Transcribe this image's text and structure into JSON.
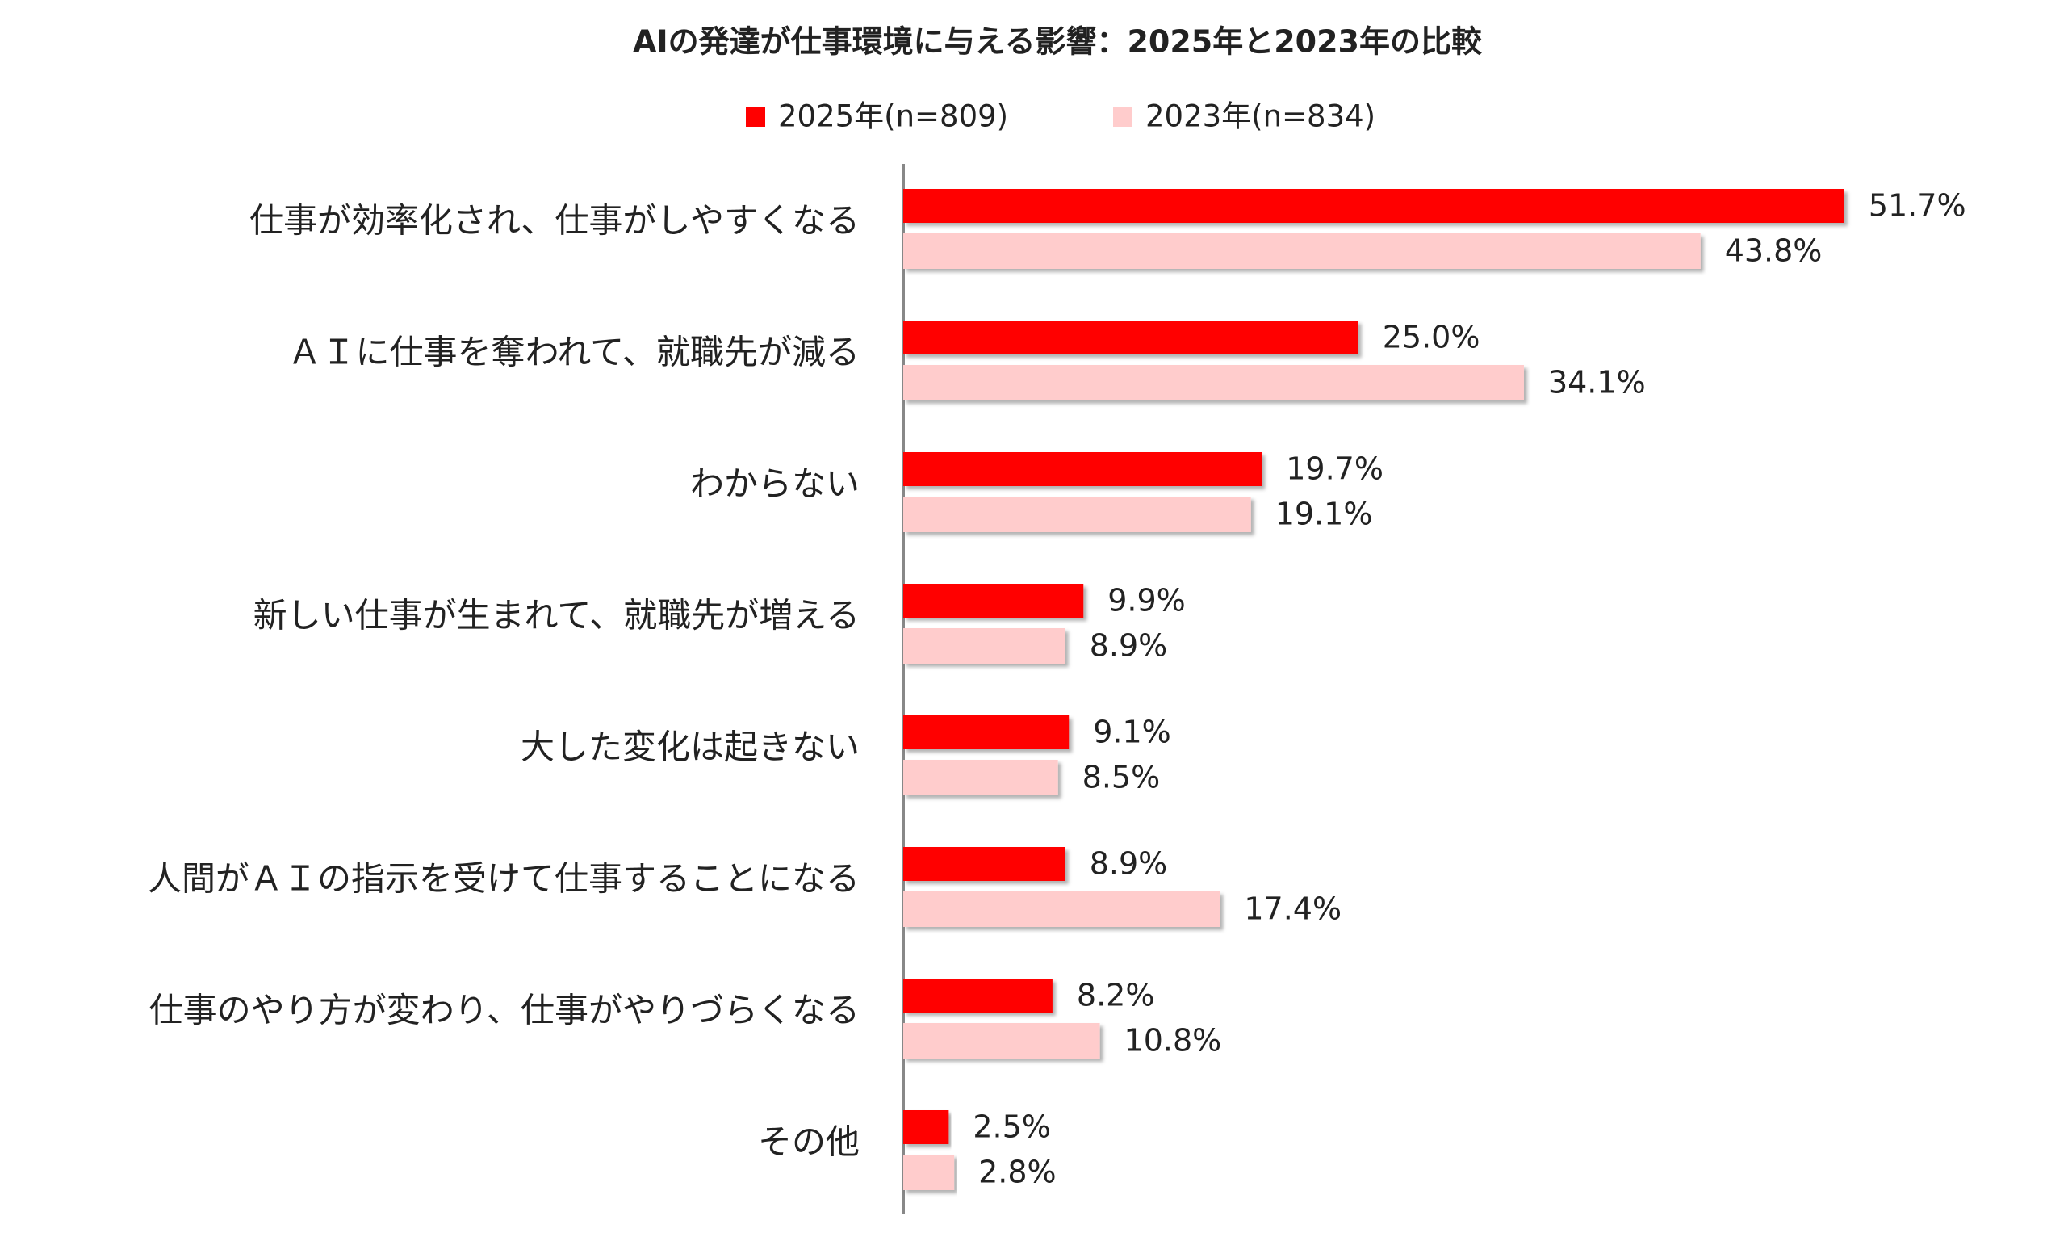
{
  "chart_data": {
    "type": "bar",
    "orientation": "horizontal",
    "title": "AIの発達が仕事環境に与える影響：2025年と2023年の比較",
    "categories": [
      "仕事が効率化され、仕事がしやすくなる",
      "ＡＩに仕事を奪われて、就職先が減る",
      "わからない",
      "新しい仕事が生まれて、就職先が増える",
      "大した変化は起きない",
      "人間がＡＩの指示を受けて仕事することになる",
      "仕事のやり方が変わり、仕事がやりづらくなる",
      "その他"
    ],
    "series": [
      {
        "name": "2025年(n=809)",
        "color": "#ff0000",
        "values": [
          51.7,
          25.0,
          19.7,
          9.9,
          9.1,
          8.9,
          8.2,
          2.5
        ],
        "value_labels": [
          "51.7%",
          "25.0%",
          "19.7%",
          "9.9%",
          "9.1%",
          "8.9%",
          "8.2%",
          "2.5%"
        ]
      },
      {
        "name": "2023年(n=834)",
        "color": "#ffcccc",
        "values": [
          43.8,
          34.1,
          19.1,
          8.9,
          8.5,
          17.4,
          10.8,
          2.8
        ],
        "value_labels": [
          "43.8%",
          "34.1%",
          "19.1%",
          "8.9%",
          "8.5%",
          "17.4%",
          "10.8%",
          "2.8%"
        ]
      }
    ]
  }
}
